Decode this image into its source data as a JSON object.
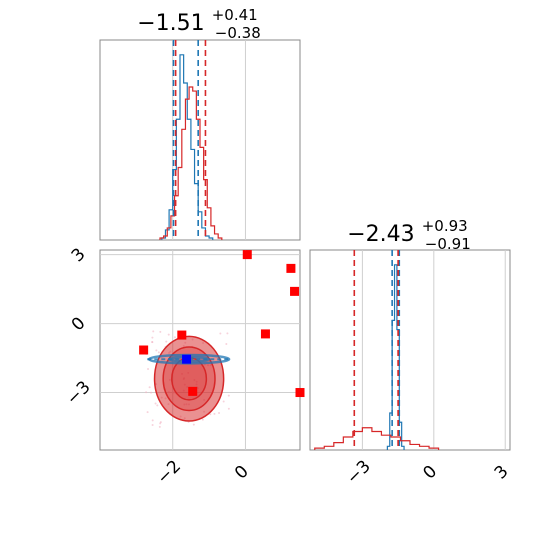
{
  "figure": {
    "panels": {
      "p1_title": {
        "main": "−1.51",
        "sup": "+0.41",
        "sub": "−0.38"
      },
      "p2_title": {
        "main": "−2.43",
        "sup": "+0.93",
        "sub": "−0.91"
      }
    }
  },
  "chart_data": [
    {
      "type": "histogram",
      "panel": "top-left (marginal of parameter 1)",
      "x_range": [
        -4,
        1.5
      ],
      "x_ticks": [
        -2,
        0
      ],
      "grid": true,
      "title": "−1.51 (+0.41 / −0.38)",
      "series": [
        {
          "color": "#1f77b4",
          "x": [
            -2.25,
            -2.15,
            -2.05,
            -1.95,
            -1.85,
            -1.75,
            -1.65,
            -1.55,
            -1.45,
            -1.35,
            -1.25,
            -1.15,
            -1.05,
            -0.95
          ],
          "values": [
            0.01,
            0.05,
            0.15,
            0.35,
            0.6,
            0.92,
            0.78,
            0.6,
            0.45,
            0.28,
            0.14,
            0.06,
            0.02,
            0.01
          ]
        },
        {
          "color": "#d62728",
          "x": [
            -2.3,
            -2.2,
            -2.1,
            -2.0,
            -1.9,
            -1.8,
            -1.7,
            -1.6,
            -1.5,
            -1.4,
            -1.3,
            -1.2,
            -1.1,
            -1.0,
            -0.9,
            -0.8,
            -0.7
          ],
          "values": [
            0.01,
            0.02,
            0.06,
            0.12,
            0.22,
            0.36,
            0.55,
            0.7,
            0.76,
            0.74,
            0.6,
            0.46,
            0.3,
            0.16,
            0.07,
            0.03,
            0.01
          ]
        }
      ],
      "quantile_lines": [
        {
          "color": "#1f77b4",
          "style": "dashed",
          "x": [
            -1.98,
            -1.3
          ]
        },
        {
          "color": "#d62728",
          "style": "dashed",
          "x": [
            -1.92,
            -1.1
          ]
        }
      ]
    },
    {
      "type": "contour-scatter",
      "panel": "bottom-left (joint of parameter 1 vs parameter 2)",
      "x_range": [
        -4,
        1.5
      ],
      "y_range": [
        -5.5,
        3.2
      ],
      "x_ticks": [
        -2,
        0
      ],
      "y_ticks": [
        3,
        0,
        -3
      ],
      "grid": true,
      "series": [
        {
          "name": "red contours",
          "color": "#d62728",
          "center": [
            -1.55,
            -2.4
          ],
          "levels_sigma": [
            1,
            1.5,
            2
          ]
        },
        {
          "name": "blue contours",
          "color": "#1f77b4",
          "center": [
            -1.55,
            -1.55
          ],
          "levels_sigma": [
            1,
            2
          ]
        },
        {
          "name": "red square markers",
          "color": "#ff0000",
          "points": [
            [
              0.05,
              3.0
            ],
            [
              1.25,
              2.4
            ],
            [
              1.35,
              1.4
            ],
            [
              0.55,
              -0.45
            ],
            [
              -2.8,
              -1.15
            ],
            [
              -1.75,
              -0.5
            ],
            [
              -1.45,
              -2.95
            ],
            [
              1.5,
              -3.0
            ]
          ]
        },
        {
          "name": "blue square marker",
          "color": "#0000ff",
          "points": [
            [
              -1.62,
              -1.55
            ]
          ]
        }
      ]
    },
    {
      "type": "histogram",
      "panel": "bottom-right (marginal of parameter 2)",
      "x_range": [
        -5.2,
        3.2
      ],
      "x_ticks": [
        -3,
        0,
        3
      ],
      "grid": true,
      "title": "−2.43 (+0.93 / −0.91)",
      "series": [
        {
          "color": "#1f77b4",
          "x": [
            -1.9,
            -1.8,
            -1.7,
            -1.6,
            -1.5,
            -1.4,
            -1.3
          ],
          "values": [
            0.02,
            0.2,
            0.7,
            1.0,
            0.65,
            0.15,
            0.02
          ]
        },
        {
          "color": "#d62728",
          "x": [
            -4.8,
            -4.4,
            -4.0,
            -3.6,
            -3.2,
            -2.8,
            -2.4,
            -2.0,
            -1.6,
            -1.2,
            -0.8,
            -0.4,
            0.0
          ],
          "values": [
            0.01,
            0.02,
            0.04,
            0.07,
            0.1,
            0.12,
            0.1,
            0.08,
            0.07,
            0.05,
            0.03,
            0.02,
            0.01
          ]
        }
      ],
      "quantile_lines": [
        {
          "color": "#1f77b4",
          "style": "dashed",
          "x": [
            -1.75,
            -1.45
          ]
        },
        {
          "color": "#d62728",
          "style": "dashed",
          "x": [
            -3.34,
            -1.5
          ]
        }
      ]
    }
  ]
}
